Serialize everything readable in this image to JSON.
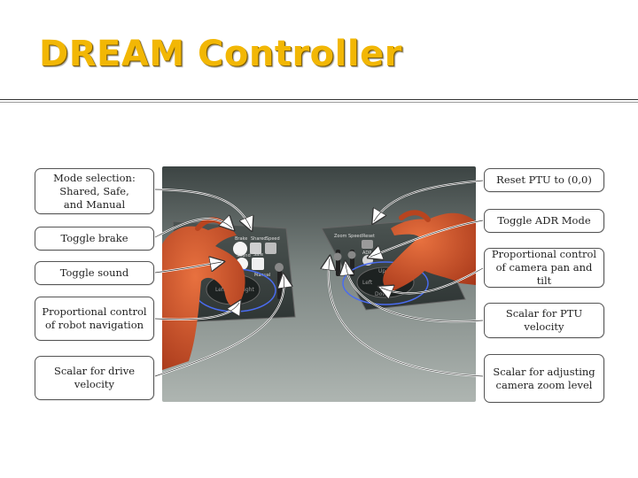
{
  "slide": {
    "title": "DREAM Controller"
  },
  "photo": {
    "left_panel": {
      "top_buttons": [
        "Brake",
        "Shared",
        "Speed"
      ],
      "mid_buttons": [
        "Sound",
        "Safe"
      ],
      "manual_label": "Manual",
      "dpad_left": "Left",
      "dpad_right": "Right"
    },
    "right_panel": {
      "top_buttons": [
        "Zoom",
        "Speed",
        "Reset"
      ],
      "adr_label": "ADR",
      "dpad_up": "Up",
      "dpad_left": "Left",
      "dpad_down": "Down"
    }
  },
  "callouts": {
    "left": [
      {
        "text": "Mode selection:\nShared, Safe,\nand Manual"
      },
      {
        "text": "Toggle brake"
      },
      {
        "text": "Toggle sound"
      },
      {
        "text": "Proportional control\nof robot navigation"
      },
      {
        "text": "Scalar for drive\nvelocity"
      }
    ],
    "right": [
      {
        "text": "Reset PTU to (0,0)"
      },
      {
        "text": "Toggle ADR Mode"
      },
      {
        "text": "Proportional control\nof camera pan and tilt"
      },
      {
        "text": "Scalar for PTU\nvelocity"
      },
      {
        "text": "Scalar for adjusting\ncamera zoom level"
      }
    ]
  },
  "colors": {
    "title": "#f2b705",
    "ring": "#4a6cf0",
    "hand": "#d9532b"
  }
}
